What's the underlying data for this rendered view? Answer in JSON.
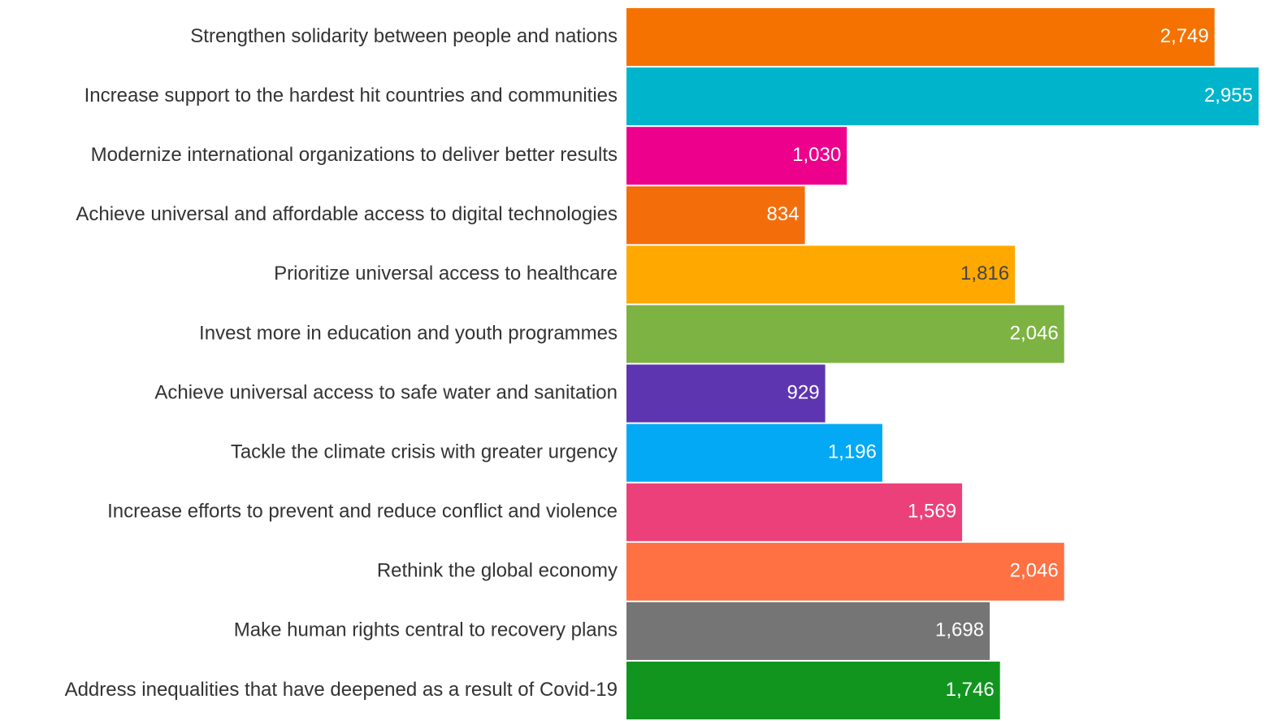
{
  "chart_data": {
    "type": "barh",
    "categories": [
      "Strengthen solidarity between people and nations",
      "Increase support to the hardest hit countries and communities",
      "Modernize international organizations to deliver better results",
      "Achieve universal and affordable access to digital technologies",
      "Prioritize universal access to healthcare",
      "Invest more in education and youth programmes",
      "Achieve universal access to safe water and sanitation",
      "Tackle the climate crisis with greater urgency",
      "Increase efforts to prevent and reduce conflict and violence",
      "Rethink the global economy",
      "Make human rights central to recovery plans",
      "Address inequalities that have deepened as a result of Covid-19"
    ],
    "values": [
      2749,
      2955,
      1030,
      834,
      1816,
      2046,
      929,
      1196,
      1569,
      2046,
      1698,
      1746
    ],
    "value_labels": [
      "2,749",
      "2,955",
      "1,030",
      "834",
      "1,816",
      "2,046",
      "929",
      "1,196",
      "1,569",
      "2,046",
      "1,698",
      "1,746"
    ],
    "colors": [
      "#F57200",
      "#00B5CB",
      "#EC008C",
      "#F36E0B",
      "#FFA800",
      "#7CB342",
      "#5E35B1",
      "#03A9F4",
      "#EC407A",
      "#FF7043",
      "#757575",
      "#12951F"
    ],
    "xlim": [
      0,
      2955
    ]
  }
}
